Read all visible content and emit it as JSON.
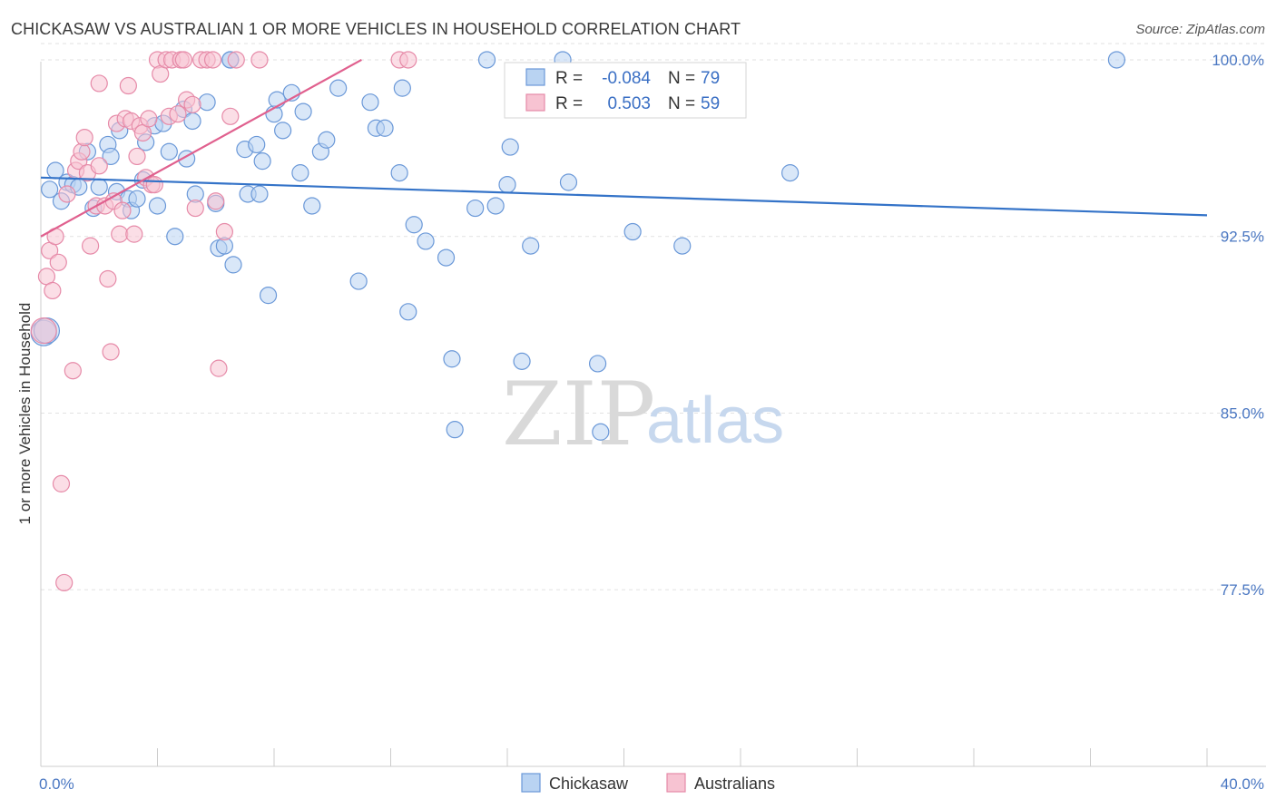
{
  "title": "CHICKASAW VS AUSTRALIAN 1 OR MORE VEHICLES IN HOUSEHOLD CORRELATION CHART",
  "source": "Source: ZipAtlas.com",
  "watermark": {
    "zip": "ZIP",
    "atlas": "atlas"
  },
  "colors": {
    "blue_fill": "#b9d3f2",
    "blue_stroke": "#6a98d8",
    "blue_line": "#3473c8",
    "pink_fill": "#f7c3d2",
    "pink_stroke": "#e68aa8",
    "pink_line": "#e0608e",
    "grid": "#e2e2e2",
    "tick_text": "#4a77c2"
  },
  "legend": {
    "rows": [
      {
        "r_label": "R =",
        "r_value": "-0.084",
        "n_label": "N =",
        "n_value": "79"
      },
      {
        "r_label": "R =",
        "r_value": "0.503",
        "n_label": "N =",
        "n_value": "59"
      }
    ]
  },
  "chart_data": {
    "type": "scatter",
    "title": "CHICKASAW VS AUSTRALIAN 1 OR MORE VEHICLES IN HOUSEHOLD CORRELATION CHART",
    "xlabel": "",
    "ylabel": "1 or more Vehicles in Household",
    "xlim": [
      0,
      40
    ],
    "ylim": [
      70.0,
      101.0
    ],
    "x_tick_labels": [
      "0.0%",
      "40.0%"
    ],
    "y_ticks": [
      77.5,
      85.0,
      92.5,
      100.0
    ],
    "y_tick_labels": [
      "77.5%",
      "85.0%",
      "92.5%",
      "100.0%"
    ],
    "legend_position": "top-center",
    "series": [
      {
        "name": "Chickasaw",
        "trend": {
          "x": [
            0,
            40
          ],
          "y": [
            95.0,
            93.4
          ]
        },
        "points": [
          [
            0.3,
            94.5
          ],
          [
            0.5,
            95.3
          ],
          [
            0.7,
            94.0
          ],
          [
            0.9,
            94.8
          ],
          [
            1.1,
            94.7
          ],
          [
            1.3,
            94.6
          ],
          [
            1.6,
            96.1
          ],
          [
            1.8,
            93.7
          ],
          [
            2.0,
            94.6
          ],
          [
            2.3,
            96.4
          ],
          [
            2.4,
            95.9
          ],
          [
            2.6,
            94.4
          ],
          [
            2.7,
            97.0
          ],
          [
            3.0,
            94.1
          ],
          [
            3.1,
            93.6
          ],
          [
            3.3,
            94.1
          ],
          [
            3.5,
            94.9
          ],
          [
            3.6,
            96.5
          ],
          [
            3.9,
            97.2
          ],
          [
            4.0,
            93.8
          ],
          [
            4.2,
            97.3
          ],
          [
            4.4,
            96.1
          ],
          [
            4.6,
            92.5
          ],
          [
            4.9,
            97.9
          ],
          [
            5.0,
            95.8
          ],
          [
            5.2,
            97.4
          ],
          [
            5.3,
            94.3
          ],
          [
            5.7,
            98.2
          ],
          [
            6.0,
            93.9
          ],
          [
            6.1,
            92.0
          ],
          [
            6.3,
            92.1
          ],
          [
            6.5,
            100.0
          ],
          [
            6.6,
            91.3
          ],
          [
            7.0,
            96.2
          ],
          [
            7.1,
            94.3
          ],
          [
            7.4,
            96.4
          ],
          [
            7.5,
            94.3
          ],
          [
            7.6,
            95.7
          ],
          [
            7.8,
            90.0
          ],
          [
            8.0,
            97.7
          ],
          [
            8.1,
            98.3
          ],
          [
            8.3,
            97.0
          ],
          [
            8.6,
            98.6
          ],
          [
            8.9,
            95.2
          ],
          [
            9.0,
            97.8
          ],
          [
            9.3,
            93.8
          ],
          [
            9.6,
            96.1
          ],
          [
            9.8,
            96.6
          ],
          [
            10.2,
            98.8
          ],
          [
            10.9,
            90.6
          ],
          [
            11.3,
            98.2
          ],
          [
            11.5,
            97.1
          ],
          [
            11.8,
            97.1
          ],
          [
            12.3,
            95.2
          ],
          [
            12.4,
            98.8
          ],
          [
            12.6,
            89.3
          ],
          [
            12.8,
            93.0
          ],
          [
            13.2,
            92.3
          ],
          [
            13.9,
            91.6
          ],
          [
            14.1,
            87.3
          ],
          [
            14.2,
            84.3
          ],
          [
            14.9,
            93.7
          ],
          [
            15.3,
            100.0
          ],
          [
            15.6,
            93.8
          ],
          [
            16.0,
            94.7
          ],
          [
            16.1,
            96.3
          ],
          [
            16.5,
            87.2
          ],
          [
            16.8,
            92.1
          ],
          [
            17.9,
            100.0
          ],
          [
            18.1,
            94.8
          ],
          [
            19.1,
            87.1
          ],
          [
            19.2,
            84.2
          ],
          [
            20.3,
            92.7
          ],
          [
            22.0,
            92.1
          ],
          [
            25.7,
            95.2
          ],
          [
            36.9,
            100.0
          ],
          [
            0.1,
            88.4
          ],
          [
            0.2,
            88.5
          ],
          [
            6.5,
            100.0
          ]
        ]
      },
      {
        "name": "Australians",
        "trend": {
          "x": [
            0,
            11.0
          ],
          "y": [
            92.5,
            100.0
          ]
        },
        "points": [
          [
            0.1,
            88.5
          ],
          [
            0.2,
            90.8
          ],
          [
            0.3,
            91.9
          ],
          [
            0.4,
            90.2
          ],
          [
            0.5,
            92.5
          ],
          [
            0.6,
            91.4
          ],
          [
            0.7,
            82.0
          ],
          [
            0.8,
            77.8
          ],
          [
            0.9,
            94.3
          ],
          [
            1.1,
            86.8
          ],
          [
            1.2,
            95.3
          ],
          [
            1.3,
            95.7
          ],
          [
            1.4,
            96.1
          ],
          [
            1.5,
            96.7
          ],
          [
            1.6,
            95.2
          ],
          [
            1.7,
            92.1
          ],
          [
            1.9,
            93.8
          ],
          [
            2.0,
            95.5
          ],
          [
            2.0,
            99.0
          ],
          [
            2.2,
            93.8
          ],
          [
            2.3,
            90.7
          ],
          [
            2.4,
            87.6
          ],
          [
            2.5,
            94.0
          ],
          [
            2.6,
            97.3
          ],
          [
            2.7,
            92.6
          ],
          [
            2.8,
            93.6
          ],
          [
            2.9,
            97.5
          ],
          [
            3.0,
            98.9
          ],
          [
            3.1,
            97.4
          ],
          [
            3.2,
            92.6
          ],
          [
            3.3,
            95.9
          ],
          [
            3.4,
            97.2
          ],
          [
            3.5,
            96.9
          ],
          [
            3.6,
            95.0
          ],
          [
            3.7,
            97.5
          ],
          [
            3.8,
            94.7
          ],
          [
            3.9,
            94.7
          ],
          [
            4.0,
            100.0
          ],
          [
            4.1,
            99.4
          ],
          [
            4.3,
            100.0
          ],
          [
            4.4,
            97.6
          ],
          [
            4.5,
            100.0
          ],
          [
            4.7,
            97.7
          ],
          [
            4.8,
            100.0
          ],
          [
            4.9,
            100.0
          ],
          [
            5.0,
            98.3
          ],
          [
            5.2,
            98.1
          ],
          [
            5.3,
            93.7
          ],
          [
            5.5,
            100.0
          ],
          [
            5.7,
            100.0
          ],
          [
            5.9,
            100.0
          ],
          [
            6.1,
            86.9
          ],
          [
            6.3,
            92.7
          ],
          [
            6.5,
            97.6
          ],
          [
            6.7,
            100.0
          ],
          [
            7.5,
            100.0
          ],
          [
            12.3,
            100.0
          ],
          [
            12.6,
            100.0
          ],
          [
            6.0,
            94.0
          ]
        ]
      }
    ]
  },
  "bottom_legend": {
    "items": [
      "Chickasaw",
      "Australians"
    ]
  }
}
